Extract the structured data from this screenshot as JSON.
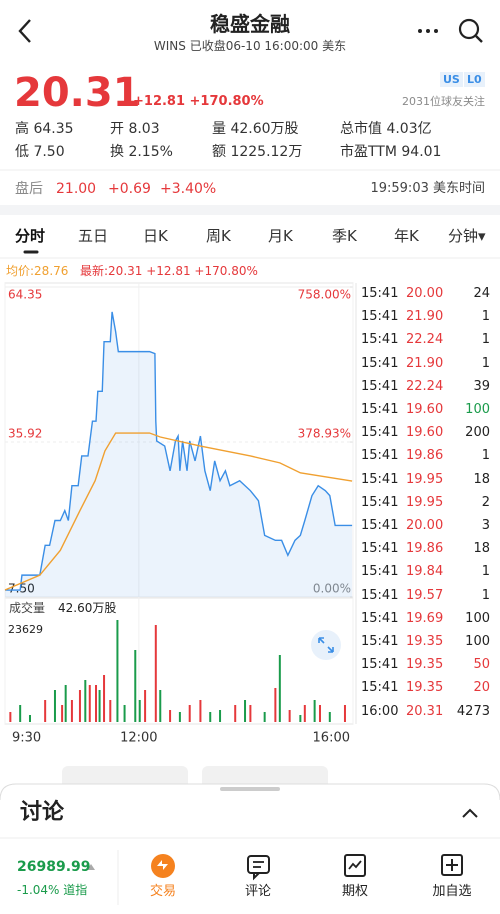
{
  "header": {
    "title": "稳盛金融",
    "subtitle": "WINS 已收盘06-10 16:00:00 美东"
  },
  "quote": {
    "price": "20.31",
    "change": "+12.81 +170.80%",
    "badges": [
      "US",
      "L0"
    ],
    "followers": "2031位球友关注",
    "stats": [
      [
        "高 64.35",
        "开 8.03",
        "量 42.60万股",
        "总市值 4.03亿"
      ],
      [
        "低 7.50",
        "换 2.15%",
        "额 1225.12万",
        "市盈TTM 94.01"
      ]
    ],
    "after_hours": {
      "label": "盘后",
      "price": "21.00",
      "change": "+0.69",
      "percent": "+3.40%",
      "time": "19:59:03 美东时间"
    }
  },
  "tabs": [
    "分时",
    "五日",
    "日K",
    "周K",
    "月K",
    "季K",
    "年K",
    "分钟▾"
  ],
  "selected_tab": 0,
  "intraday": {
    "avg_label": "均价:28.76",
    "latest_label": "最新:20.31 +12.81 +170.80%",
    "xlim": [
      0,
      390
    ],
    "xticks": [
      {
        "value": 0,
        "label": "9:30"
      },
      {
        "value": 150,
        "label": "12:00"
      },
      {
        "value": 390,
        "label": "16:00"
      }
    ],
    "ylim": [
      7.5,
      64.35
    ],
    "yticks": [
      64.35,
      35.92,
      {
        "value": 7.5,
        "label": "7.50"
      }
    ],
    "pct_ticks": [
      {
        "value": 758,
        "label": "758.00%"
      },
      {
        "value": 378.93,
        "label": "378.93%"
      },
      {
        "value": 0,
        "label": "0.00%"
      }
    ],
    "price": {
      "color": "#3a8ee6",
      "x": [
        0,
        17,
        19,
        39,
        45,
        50,
        56,
        62,
        67,
        71,
        75,
        82,
        86,
        93,
        98,
        102,
        104,
        109,
        111,
        118,
        120,
        124,
        127,
        162,
        168,
        169,
        170,
        179,
        185,
        191,
        194,
        196,
        199,
        204,
        207,
        213,
        219,
        224,
        230,
        235,
        241,
        247,
        252,
        263,
        275,
        284,
        288,
        291,
        303,
        310,
        317,
        325,
        331,
        336,
        344,
        351,
        359,
        364,
        370,
        389
      ],
      "values": [
        8.78,
        8.78,
        11.51,
        11.51,
        16.97,
        16.97,
        21.53,
        21.53,
        23.35,
        21.53,
        27.91,
        27.91,
        33.37,
        33.37,
        39.75,
        39.75,
        45.22,
        45.22,
        54.33,
        54.33,
        59.79,
        56.15,
        52.5,
        52.5,
        52.14,
        39.75,
        36.11,
        35.19,
        30.64,
        36.11,
        37.02,
        30.64,
        36.11,
        30.64,
        36.11,
        32.46,
        37.02,
        30.64,
        27.0,
        32.46,
        28.82,
        30.64,
        27.91,
        28.82,
        27.0,
        25.17,
        21.53,
        18.8,
        17.89,
        17.89,
        15.15,
        17.89,
        18.8,
        21.53,
        26.09,
        27.91,
        27.0,
        26.09,
        20.62,
        20.62
      ]
    },
    "average": {
      "color": "#f0a030",
      "x": [
        0,
        39,
        62,
        84,
        101,
        112,
        124,
        162,
        174,
        219,
        275,
        308,
        331,
        389
      ],
      "values": [
        8.78,
        11.51,
        16.06,
        23.35,
        28.82,
        34.29,
        37.57,
        37.57,
        36.84,
        35.19,
        33.37,
        32.1,
        30.27,
        28.76
      ]
    },
    "volume_label": "成交量",
    "volume_total": "42.60万股",
    "volume_ylim": [
      0,
      23629
    ],
    "volume_max_label": "23629",
    "volume_series": [
      {
        "color": "#e5383b",
        "x": [
          6,
          45,
          64,
          75,
          84,
          95,
          102,
          111,
          118,
          157,
          169,
          185,
          207,
          219,
          258,
          275,
          303,
          319,
          336,
          353,
          381
        ],
        "values": [
          2317,
          5097,
          3938,
          5097,
          7413,
          8571,
          8571,
          10888,
          5097,
          7413,
          22471,
          2780,
          3938,
          5097,
          3938,
          3938,
          7877,
          2780,
          3938,
          3938,
          3938
        ]
      },
      {
        "color": "#1a9b4b",
        "x": [
          17,
          28,
          56,
          68,
          90,
          106,
          126,
          134,
          146,
          151,
          174,
          196,
          230,
          241,
          269,
          291,
          308,
          331,
          347,
          364
        ],
        "values": [
          3938,
          1622,
          7413,
          8571,
          9730,
          7413,
          23629,
          3938,
          16680,
          5097,
          7413,
          2317,
          2317,
          2780,
          5097,
          2317,
          15521,
          1622,
          5097,
          2317
        ]
      }
    ]
  },
  "trades": [
    {
      "time": "15:41",
      "price": "20.00",
      "volume": "24",
      "volume_color": "#222222"
    },
    {
      "time": "15:41",
      "price": "21.90",
      "volume": "1",
      "volume_color": "#222222"
    },
    {
      "time": "15:41",
      "price": "22.24",
      "volume": "1",
      "volume_color": "#222222"
    },
    {
      "time": "15:41",
      "price": "21.90",
      "volume": "1",
      "volume_color": "#222222"
    },
    {
      "time": "15:41",
      "price": "22.24",
      "volume": "39",
      "volume_color": "#222222"
    },
    {
      "time": "15:41",
      "price": "19.60",
      "volume": "100",
      "volume_color": "#1a9b4b"
    },
    {
      "time": "15:41",
      "price": "19.60",
      "volume": "200",
      "volume_color": "#222222"
    },
    {
      "time": "15:41",
      "price": "19.86",
      "volume": "1",
      "volume_color": "#222222"
    },
    {
      "time": "15:41",
      "price": "19.95",
      "volume": "18",
      "volume_color": "#222222"
    },
    {
      "time": "15:41",
      "price": "19.95",
      "volume": "2",
      "volume_color": "#222222"
    },
    {
      "time": "15:41",
      "price": "20.00",
      "volume": "3",
      "volume_color": "#222222"
    },
    {
      "time": "15:41",
      "price": "19.86",
      "volume": "18",
      "volume_color": "#222222"
    },
    {
      "time": "15:41",
      "price": "19.84",
      "volume": "1",
      "volume_color": "#222222"
    },
    {
      "time": "15:41",
      "price": "19.57",
      "volume": "1",
      "volume_color": "#222222"
    },
    {
      "time": "15:41",
      "price": "19.69",
      "volume": "100",
      "volume_color": "#222222"
    },
    {
      "time": "15:41",
      "price": "19.35",
      "volume": "100",
      "volume_color": "#222222"
    },
    {
      "time": "15:41",
      "price": "19.35",
      "volume": "50",
      "volume_color": "#e5383b"
    },
    {
      "time": "15:41",
      "price": "19.35",
      "volume": "20",
      "volume_color": "#e5383b"
    },
    {
      "time": "16:00",
      "price": "20.31",
      "volume": "4273",
      "volume_color": "#222222"
    }
  ],
  "discussion": {
    "title": "讨论"
  },
  "bottom_bar": {
    "index_value": "26989.99",
    "index_change": "-1.04% 道指",
    "actions": [
      "交易",
      "评论",
      "期权",
      "加自选"
    ]
  }
}
